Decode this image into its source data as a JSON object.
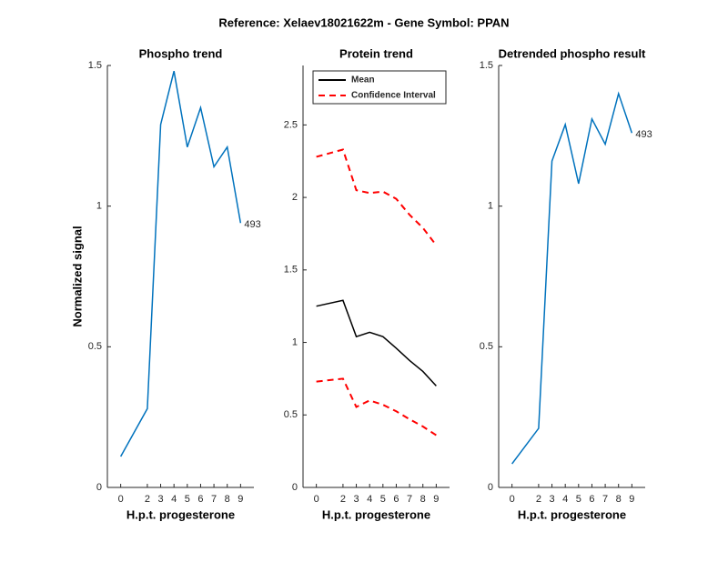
{
  "title": "Reference:  Xelaev18021622m - Gene Symbol:  PPAN",
  "chart_data": [
    {
      "type": "line",
      "title": "Phospho trend",
      "xlabel": "H.p.t. progesterone",
      "ylabel": "Normalized signal",
      "x": [
        0,
        2,
        3,
        4,
        5,
        6,
        7,
        8,
        9
      ],
      "xlim": [
        -1,
        10
      ],
      "xticks": [
        0,
        2,
        3,
        4,
        5,
        6,
        7,
        8,
        9
      ],
      "ylim": [
        0,
        1.5
      ],
      "yticks": [
        0,
        0.5,
        1,
        1.5
      ],
      "series": [
        {
          "name": "Phospho",
          "color": "#0072bd",
          "values": [
            0.11,
            0.28,
            1.29,
            1.48,
            1.21,
            1.35,
            1.14,
            1.21,
            0.94
          ]
        }
      ],
      "annotation": "493"
    },
    {
      "type": "band-line",
      "title": "Protein trend",
      "xlabel": "H.p.t. progesterone",
      "x": [
        0,
        2,
        3,
        4,
        5,
        6,
        7,
        8,
        9
      ],
      "xlim": [
        -1,
        10
      ],
      "xticks": [
        0,
        2,
        3,
        4,
        5,
        6,
        7,
        8,
        9
      ],
      "ylim": [
        0,
        2.91
      ],
      "yticks": [
        0,
        0.5,
        1,
        1.5,
        2,
        2.5
      ],
      "series": [
        {
          "name": "Mean",
          "color": "#000000",
          "values": [
            1.25,
            1.29,
            1.04,
            1.07,
            1.04,
            0.96,
            0.875,
            0.8,
            0.7
          ]
        },
        {
          "name": "Confidence Interval",
          "color": "#ff0000",
          "dashed": true,
          "upper": [
            2.28,
            2.33,
            2.05,
            2.03,
            2.04,
            1.99,
            1.88,
            1.79,
            1.67
          ],
          "lower": [
            0.73,
            0.75,
            0.555,
            0.6,
            0.57,
            0.525,
            0.47,
            0.42,
            0.36
          ]
        }
      ],
      "legend": "upper-left"
    },
    {
      "type": "line",
      "title": "Detrended phospho result",
      "xlabel": "H.p.t. progesterone",
      "x": [
        0,
        2,
        3,
        4,
        5,
        6,
        7,
        8,
        9
      ],
      "xlim": [
        -1,
        10
      ],
      "xticks": [
        0,
        2,
        3,
        4,
        5,
        6,
        7,
        8,
        9
      ],
      "ylim": [
        0,
        1.5
      ],
      "yticks": [
        0,
        0.5,
        1,
        1.5
      ],
      "series": [
        {
          "name": "Detrended",
          "color": "#0072bd",
          "values": [
            0.084,
            0.21,
            1.16,
            1.29,
            1.08,
            1.31,
            1.22,
            1.4,
            1.26
          ]
        }
      ],
      "annotation": "493"
    }
  ]
}
